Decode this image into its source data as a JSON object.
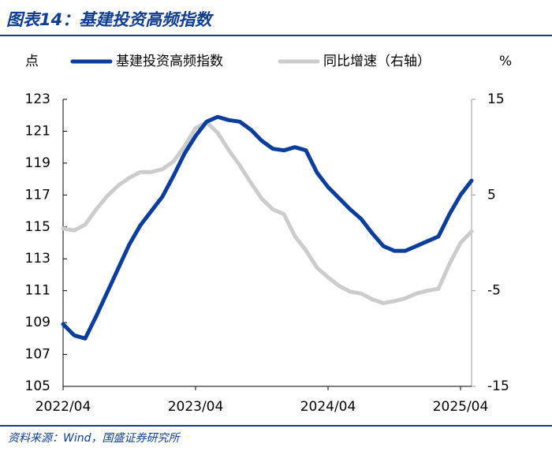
{
  "chart_data": {
    "type": "line",
    "title": "图表14：基建投资高频指数",
    "source": "资料来源：Wind，国盛证券研究所",
    "y_unit": "点",
    "y2_unit": "%",
    "x": [
      "2022/04",
      "2022/05",
      "2022/06",
      "2022/07",
      "2022/08",
      "2022/09",
      "2022/10",
      "2022/11",
      "2022/12",
      "2023/01",
      "2023/02",
      "2023/03",
      "2023/04",
      "2023/05",
      "2023/06",
      "2023/07",
      "2023/08",
      "2023/09",
      "2023/10",
      "2023/11",
      "2023/12",
      "2024/01",
      "2024/02",
      "2024/03",
      "2024/04",
      "2024/05",
      "2024/06",
      "2024/07",
      "2024/08",
      "2024/09",
      "2024/10",
      "2024/11",
      "2024/12",
      "2025/01",
      "2025/02",
      "2025/03",
      "2025/04",
      "2025/05"
    ],
    "xticks": [
      "2022/04",
      "2023/04",
      "2024/04",
      "2025/04"
    ],
    "ylim": [
      105,
      123
    ],
    "yticks": [
      105,
      107,
      109,
      111,
      113,
      115,
      117,
      119,
      121,
      123
    ],
    "y2lim": [
      -15,
      15
    ],
    "y2ticks": [
      -15,
      -5,
      5,
      15
    ],
    "grid": false,
    "series": [
      {
        "name": "基建投资高频指数",
        "color": "#0a3d9c",
        "values": [
          108.9,
          108.2,
          108.0,
          109.4,
          110.9,
          112.4,
          113.9,
          115.1,
          116.0,
          116.9,
          118.2,
          119.6,
          120.7,
          121.6,
          121.9,
          121.7,
          121.6,
          121.1,
          120.4,
          119.9,
          119.8,
          120.0,
          119.8,
          118.4,
          117.5,
          116.8,
          116.1,
          115.5,
          114.6,
          113.8,
          113.5,
          113.5,
          113.8,
          114.1,
          114.4,
          115.8,
          117.0,
          117.9
        ]
      },
      {
        "name": "同比增速（右轴）",
        "color": "#cccccc",
        "axis": "y2",
        "values": [
          1.5,
          1.3,
          1.9,
          3.5,
          4.9,
          6.0,
          6.8,
          7.4,
          7.4,
          7.7,
          8.5,
          10.1,
          12.0,
          12.6,
          11.5,
          9.7,
          8.1,
          6.3,
          4.6,
          3.5,
          3.0,
          0.7,
          -0.8,
          -2.6,
          -3.6,
          -4.5,
          -5.1,
          -5.3,
          -5.9,
          -6.3,
          -6.1,
          -5.8,
          -5.3,
          -5.0,
          -4.8,
          -2.2,
          0.0,
          1.2
        ]
      }
    ]
  }
}
